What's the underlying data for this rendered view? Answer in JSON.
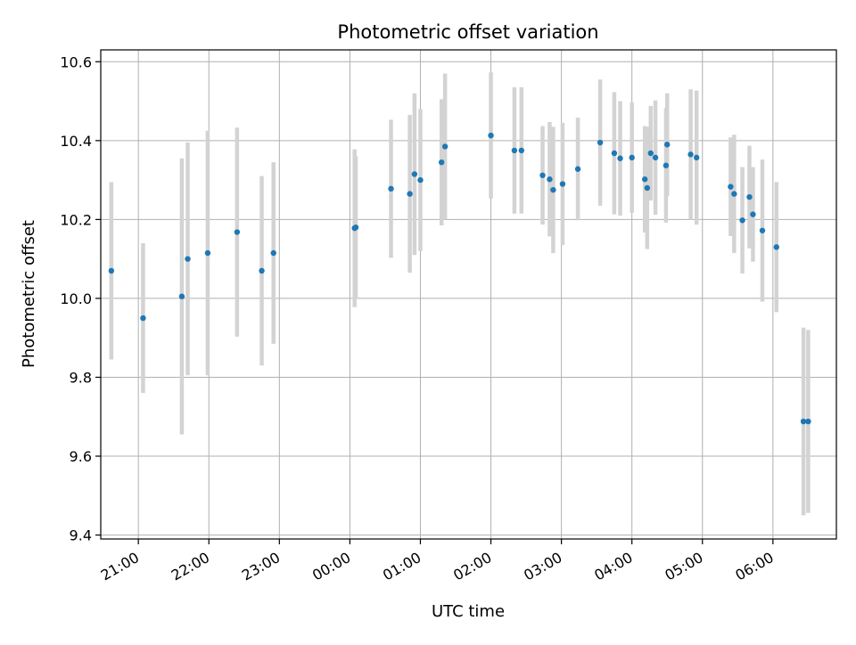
{
  "chart_data": {
    "type": "scatter",
    "title": "Photometric offset variation",
    "xlabel": "UTC time",
    "ylabel": "Photometric offset",
    "x_ticks": [
      "21:00",
      "22:00",
      "23:00",
      "00:00",
      "01:00",
      "02:00",
      "03:00",
      "04:00",
      "05:00",
      "06:00"
    ],
    "y_ticks": [
      "9.4",
      "9.6",
      "9.8",
      "10.0",
      "10.2",
      "10.4",
      "10.6"
    ],
    "ylim": [
      9.39,
      10.63
    ],
    "xlim": [
      "20:28",
      "06:54"
    ],
    "grid": true,
    "colors": {
      "point": "#1f77b4",
      "errorbar": "#d3d3d3",
      "grid": "#b0b0b0"
    },
    "points": [
      {
        "x": "20:37",
        "y": 10.07,
        "err": 0.225
      },
      {
        "x": "21:04",
        "y": 9.95,
        "err": 0.19
      },
      {
        "x": "21:37",
        "y": 10.005,
        "err": 0.35
      },
      {
        "x": "21:42",
        "y": 10.1,
        "err": 0.295
      },
      {
        "x": "21:59",
        "y": 10.115,
        "err": 0.31
      },
      {
        "x": "22:24",
        "y": 10.168,
        "err": 0.265
      },
      {
        "x": "22:45",
        "y": 10.07,
        "err": 0.24
      },
      {
        "x": "22:55",
        "y": 10.115,
        "err": 0.23
      },
      {
        "x": "00:04",
        "y": 10.178,
        "err": 0.2
      },
      {
        "x": "00:05",
        "y": 10.18,
        "err": 0.18
      },
      {
        "x": "00:35",
        "y": 10.278,
        "err": 0.175
      },
      {
        "x": "00:51",
        "y": 10.265,
        "err": 0.2
      },
      {
        "x": "00:55",
        "y": 10.315,
        "err": 0.205
      },
      {
        "x": "01:00",
        "y": 10.3,
        "err": 0.18
      },
      {
        "x": "01:18",
        "y": 10.345,
        "err": 0.16
      },
      {
        "x": "01:21",
        "y": 10.385,
        "err": 0.185
      },
      {
        "x": "02:00",
        "y": 10.413,
        "err": 0.16
      },
      {
        "x": "02:20",
        "y": 10.375,
        "err": 0.16
      },
      {
        "x": "02:26",
        "y": 10.375,
        "err": 0.16
      },
      {
        "x": "02:44",
        "y": 10.312,
        "err": 0.125
      },
      {
        "x": "02:50",
        "y": 10.302,
        "err": 0.145
      },
      {
        "x": "02:53",
        "y": 10.275,
        "err": 0.16
      },
      {
        "x": "03:01",
        "y": 10.29,
        "err": 0.155
      },
      {
        "x": "03:14",
        "y": 10.328,
        "err": 0.13
      },
      {
        "x": "03:33",
        "y": 10.395,
        "err": 0.16
      },
      {
        "x": "03:45",
        "y": 10.368,
        "err": 0.155
      },
      {
        "x": "03:50",
        "y": 10.355,
        "err": 0.145
      },
      {
        "x": "04:00",
        "y": 10.357,
        "err": 0.14
      },
      {
        "x": "04:11",
        "y": 10.302,
        "err": 0.135
      },
      {
        "x": "04:13",
        "y": 10.28,
        "err": 0.155
      },
      {
        "x": "04:16",
        "y": 10.368,
        "err": 0.12
      },
      {
        "x": "04:20",
        "y": 10.357,
        "err": 0.145
      },
      {
        "x": "04:29",
        "y": 10.337,
        "err": 0.145
      },
      {
        "x": "04:30",
        "y": 10.39,
        "err": 0.13
      },
      {
        "x": "04:50",
        "y": 10.365,
        "err": 0.165
      },
      {
        "x": "04:55",
        "y": 10.357,
        "err": 0.17
      },
      {
        "x": "05:24",
        "y": 10.283,
        "err": 0.125
      },
      {
        "x": "05:27",
        "y": 10.265,
        "err": 0.15
      },
      {
        "x": "05:34",
        "y": 10.198,
        "err": 0.135
      },
      {
        "x": "05:40",
        "y": 10.257,
        "err": 0.13
      },
      {
        "x": "05:43",
        "y": 10.213,
        "err": 0.12
      },
      {
        "x": "05:51",
        "y": 10.172,
        "err": 0.18
      },
      {
        "x": "06:03",
        "y": 10.13,
        "err": 0.165
      },
      {
        "x": "06:26",
        "y": 9.688,
        "err": 0.238
      },
      {
        "x": "06:30",
        "y": 9.688,
        "err": 0.232
      }
    ]
  }
}
